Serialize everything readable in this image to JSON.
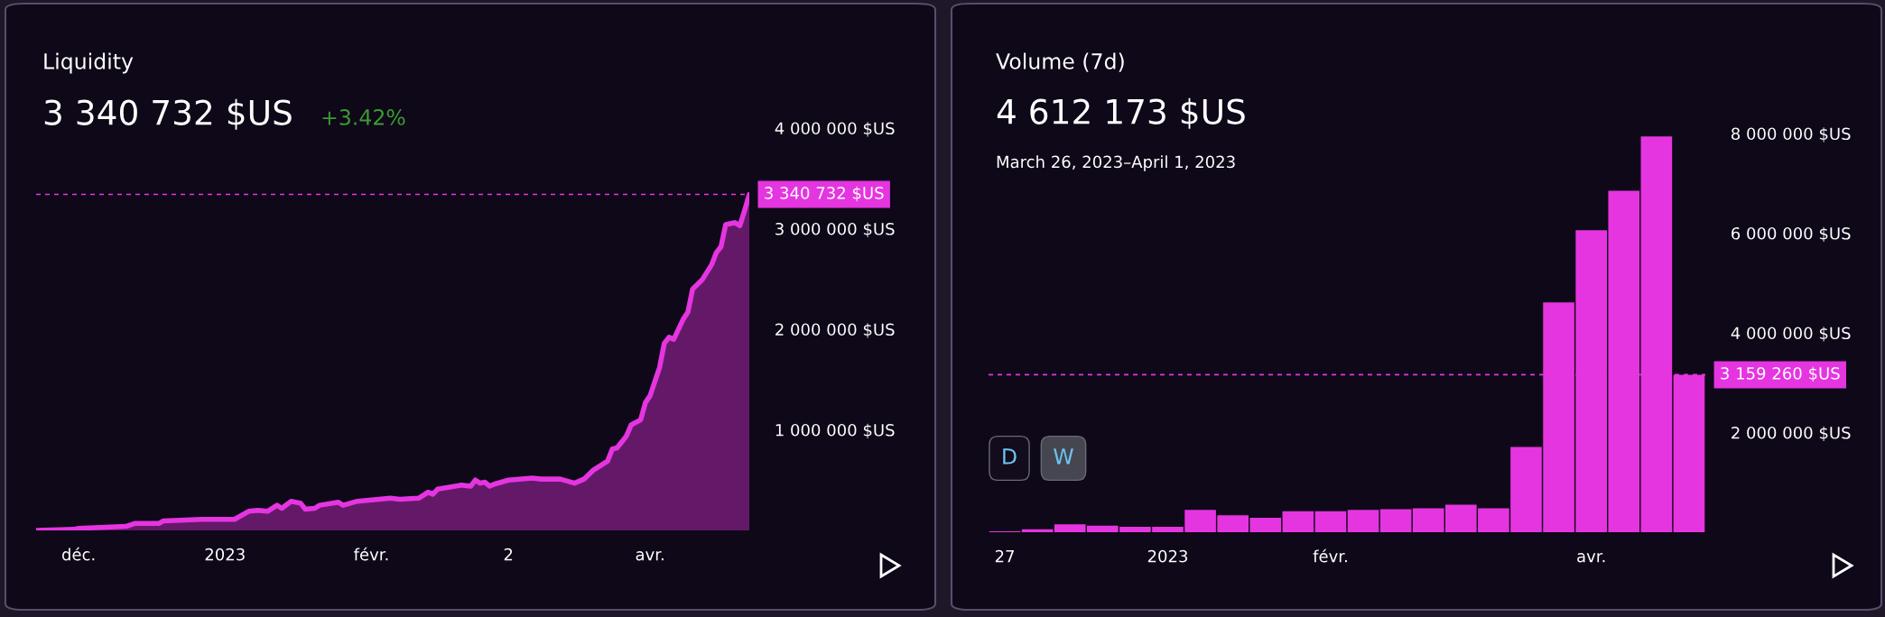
{
  "chart_data": [
    {
      "type": "area",
      "title": "Liquidity",
      "subtitle": "3 340 732 $US",
      "annotations": [
        "+3.42%"
      ],
      "x": [
        "2022-11-22",
        "2022-11-30",
        "2022-12-01",
        "2022-12-11",
        "2022-12-13",
        "2022-12-18",
        "2022-12-19",
        "2022-12-27",
        "2023-01-03",
        "2023-01-06",
        "2023-01-08",
        "2023-01-10",
        "2023-01-12",
        "2023-01-13",
        "2023-01-15",
        "2023-01-17",
        "2023-01-18",
        "2023-01-20",
        "2023-01-21",
        "2023-01-25",
        "2023-01-26",
        "2023-01-29",
        "2023-02-05",
        "2023-02-07",
        "2023-02-11",
        "2023-02-13",
        "2023-02-14",
        "2023-02-15",
        "2023-02-20",
        "2023-02-22",
        "2023-02-23",
        "2023-02-24",
        "2023-02-25",
        "2023-02-26",
        "2023-02-27",
        "2023-03-02",
        "2023-03-07",
        "2023-03-09",
        "2023-03-13",
        "2023-03-16",
        "2023-03-18",
        "2023-03-20",
        "2023-03-23",
        "2023-03-24",
        "2023-03-25",
        "2023-03-27",
        "2023-03-28",
        "2023-03-30",
        "2023-03-31",
        "2023-04-01",
        "2023-04-03",
        "2023-04-04",
        "2023-04-05",
        "2023-04-06",
        "2023-04-08",
        "2023-04-09",
        "2023-04-10",
        "2023-04-12",
        "2023-04-14",
        "2023-04-15",
        "2023-04-16",
        "2023-04-17",
        "2023-04-19",
        "2023-04-20",
        "2023-04-21",
        "2023-04-22"
      ],
      "series": [
        {
          "color": "#e535e0",
          "values": [
            0,
            10000,
            20000,
            40000,
            70000,
            70000,
            95000,
            110000,
            110000,
            190000,
            200000,
            190000,
            250000,
            220000,
            290000,
            270000,
            210000,
            220000,
            250000,
            280000,
            250000,
            290000,
            320000,
            310000,
            320000,
            380000,
            360000,
            410000,
            450000,
            440000,
            500000,
            470000,
            480000,
            440000,
            460000,
            500000,
            520000,
            510000,
            510000,
            470000,
            510000,
            600000,
            690000,
            810000,
            820000,
            940000,
            1050000,
            1100000,
            1270000,
            1340000,
            1620000,
            1860000,
            1920000,
            1900000,
            2100000,
            2170000,
            2400000,
            2490000,
            2640000,
            2760000,
            2820000,
            3040000,
            3060000,
            3030000,
            3180000,
            3340732
          ]
        }
      ],
      "xlim": [
        "2022-11-22",
        "2023-04-22"
      ],
      "xticks": [
        {
          "value": "2022-12-01",
          "label": "déc."
        },
        {
          "value": "2023-01-01",
          "label": "2023"
        },
        {
          "value": "2023-02-01",
          "label": "févr."
        },
        {
          "value": "2023-03-02",
          "label": "2"
        },
        {
          "value": "2023-04-01",
          "label": "avr."
        }
      ],
      "ylim": [
        0,
        4000000
      ],
      "yticks": [
        {
          "value": 1000000,
          "label": "1 000 000 $US"
        },
        {
          "value": 2000000,
          "label": "2 000 000 $US"
        },
        {
          "value": 3000000,
          "label": "3 000 000 $US"
        },
        {
          "value": 4000000,
          "label": "4 000 000 $US"
        }
      ],
      "ref_lines": [
        {
          "axis": "y",
          "value": 3340732,
          "label": "3 340 732 $US",
          "color": "#e535e0",
          "line_style": "dashed"
        }
      ],
      "grid": false,
      "legend": false
    },
    {
      "type": "bar",
      "title": "Volume (7d)",
      "subtitle": "4 612 173 $US",
      "annotations": [
        "March 26, 2023–April 1, 2023",
        "D",
        "W"
      ],
      "categories": [
        "27",
        null,
        null,
        null,
        null,
        "2023",
        null,
        null,
        null,
        null,
        "févr.",
        null,
        null,
        null,
        null,
        null,
        null,
        null,
        "avr.",
        null,
        null,
        null
      ],
      "series": [
        {
          "color": "#e535e0",
          "values": [
            20000,
            60000,
            160000,
            130000,
            110000,
            110000,
            450000,
            340000,
            290000,
            420000,
            420000,
            450000,
            460000,
            480000,
            550000,
            480000,
            1710000,
            4612173,
            6060000,
            6850000,
            7940000,
            3159260
          ]
        }
      ],
      "ylim": [
        0,
        8000000
      ],
      "yticks": [
        {
          "value": 2000000,
          "label": "2 000 000 $US"
        },
        {
          "value": 4000000,
          "label": "4 000 000 $US"
        },
        {
          "value": 6000000,
          "label": "6 000 000 $US"
        },
        {
          "value": 8000000,
          "label": "8 000 000 $US"
        }
      ],
      "ref_lines": [
        {
          "axis": "y",
          "value": 3159260,
          "label": "3 159 260 $US",
          "color": "#e535e0",
          "line_style": "dashed"
        }
      ],
      "grid": false,
      "legend": false
    }
  ]
}
